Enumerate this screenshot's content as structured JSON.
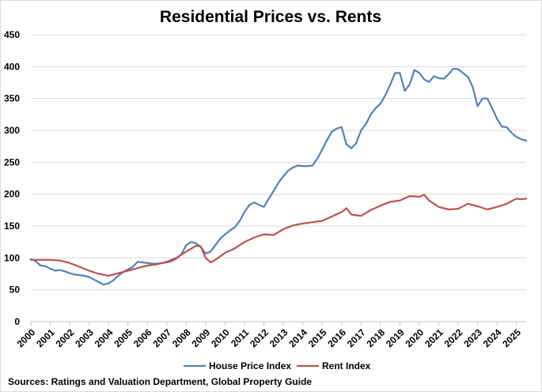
{
  "chart_data": {
    "type": "line",
    "title": "Residential Prices vs. Rents",
    "xlabel": "",
    "ylabel": "",
    "ylim": [
      0,
      450
    ],
    "yticks": [
      0,
      50,
      100,
      150,
      200,
      250,
      300,
      350,
      400,
      450
    ],
    "xlim": [
      2000,
      2025.5
    ],
    "xticks": [
      "2000",
      "2001",
      "2002",
      "2003",
      "2004",
      "2005",
      "2006",
      "2007",
      "2008",
      "2009",
      "2010",
      "2011",
      "2012",
      "2013",
      "2014",
      "2015",
      "2016",
      "2017",
      "2018",
      "2019",
      "2020",
      "2021",
      "2022",
      "2023",
      "2024",
      "2025"
    ],
    "grid": "horizontal",
    "legend_position": "bottom",
    "source": "Sources: Ratings and Valuation Department, Global Property Guide",
    "series": [
      {
        "name": "House Price Index",
        "color": "#4f81bd",
        "points": [
          [
            2000.0,
            98
          ],
          [
            2000.25,
            95
          ],
          [
            2000.5,
            88
          ],
          [
            2000.75,
            87
          ],
          [
            2001.0,
            83
          ],
          [
            2001.25,
            80
          ],
          [
            2001.5,
            81
          ],
          [
            2001.75,
            79
          ],
          [
            2002.0,
            76
          ],
          [
            2002.25,
            74
          ],
          [
            2002.5,
            73
          ],
          [
            2002.75,
            72
          ],
          [
            2003.0,
            70
          ],
          [
            2003.25,
            66
          ],
          [
            2003.5,
            62
          ],
          [
            2003.75,
            58
          ],
          [
            2004.0,
            60
          ],
          [
            2004.25,
            65
          ],
          [
            2004.5,
            72
          ],
          [
            2004.75,
            78
          ],
          [
            2005.0,
            82
          ],
          [
            2005.25,
            86
          ],
          [
            2005.5,
            94
          ],
          [
            2005.75,
            93
          ],
          [
            2006.0,
            92
          ],
          [
            2006.25,
            91
          ],
          [
            2006.5,
            91
          ],
          [
            2006.75,
            92
          ],
          [
            2007.0,
            93
          ],
          [
            2007.25,
            95
          ],
          [
            2007.5,
            99
          ],
          [
            2007.75,
            106
          ],
          [
            2008.0,
            120
          ],
          [
            2008.25,
            125
          ],
          [
            2008.5,
            123
          ],
          [
            2008.75,
            117
          ],
          [
            2009.0,
            107
          ],
          [
            2009.25,
            110
          ],
          [
            2009.5,
            120
          ],
          [
            2009.75,
            130
          ],
          [
            2010.0,
            137
          ],
          [
            2010.25,
            143
          ],
          [
            2010.5,
            148
          ],
          [
            2010.75,
            158
          ],
          [
            2011.0,
            172
          ],
          [
            2011.25,
            183
          ],
          [
            2011.5,
            187
          ],
          [
            2011.75,
            183
          ],
          [
            2012.0,
            180
          ],
          [
            2012.25,
            193
          ],
          [
            2012.5,
            205
          ],
          [
            2012.75,
            218
          ],
          [
            2013.0,
            228
          ],
          [
            2013.25,
            237
          ],
          [
            2013.5,
            242
          ],
          [
            2013.75,
            245
          ],
          [
            2014.0,
            244
          ],
          [
            2014.25,
            244
          ],
          [
            2014.5,
            245
          ],
          [
            2014.75,
            256
          ],
          [
            2015.0,
            270
          ],
          [
            2015.25,
            285
          ],
          [
            2015.5,
            298
          ],
          [
            2015.75,
            303
          ],
          [
            2016.0,
            305
          ],
          [
            2016.25,
            278
          ],
          [
            2016.5,
            272
          ],
          [
            2016.75,
            280
          ],
          [
            2017.0,
            300
          ],
          [
            2017.25,
            310
          ],
          [
            2017.5,
            325
          ],
          [
            2017.75,
            335
          ],
          [
            2018.0,
            342
          ],
          [
            2018.25,
            355
          ],
          [
            2018.5,
            372
          ],
          [
            2018.75,
            390
          ],
          [
            2019.0,
            390
          ],
          [
            2019.25,
            362
          ],
          [
            2019.5,
            372
          ],
          [
            2019.75,
            395
          ],
          [
            2020.0,
            390
          ],
          [
            2020.25,
            380
          ],
          [
            2020.5,
            376
          ],
          [
            2020.75,
            385
          ],
          [
            2021.0,
            382
          ],
          [
            2021.25,
            381
          ],
          [
            2021.5,
            388
          ],
          [
            2021.75,
            397
          ],
          [
            2022.0,
            396
          ],
          [
            2022.25,
            390
          ],
          [
            2022.5,
            384
          ],
          [
            2022.75,
            368
          ],
          [
            2023.0,
            338
          ],
          [
            2023.25,
            350
          ],
          [
            2023.5,
            350
          ],
          [
            2023.75,
            335
          ],
          [
            2024.0,
            318
          ],
          [
            2024.25,
            306
          ],
          [
            2024.5,
            305
          ],
          [
            2024.75,
            296
          ],
          [
            2025.0,
            290
          ],
          [
            2025.25,
            286
          ],
          [
            2025.5,
            284
          ]
        ]
      },
      {
        "name": "Rent Index",
        "color": "#c0504d",
        "points": [
          [
            2000.0,
            97
          ],
          [
            2000.5,
            97
          ],
          [
            2001.0,
            97
          ],
          [
            2001.5,
            96
          ],
          [
            2002.0,
            92
          ],
          [
            2002.5,
            86
          ],
          [
            2003.0,
            80
          ],
          [
            2003.5,
            75
          ],
          [
            2004.0,
            72
          ],
          [
            2004.5,
            76
          ],
          [
            2005.0,
            80
          ],
          [
            2005.5,
            84
          ],
          [
            2006.0,
            88
          ],
          [
            2006.5,
            90
          ],
          [
            2007.0,
            94
          ],
          [
            2007.5,
            100
          ],
          [
            2008.0,
            110
          ],
          [
            2008.5,
            119
          ],
          [
            2008.75,
            118
          ],
          [
            2009.0,
            100
          ],
          [
            2009.25,
            93
          ],
          [
            2009.5,
            97
          ],
          [
            2010.0,
            108
          ],
          [
            2010.5,
            115
          ],
          [
            2011.0,
            125
          ],
          [
            2011.5,
            132
          ],
          [
            2012.0,
            137
          ],
          [
            2012.5,
            136
          ],
          [
            2013.0,
            145
          ],
          [
            2013.5,
            151
          ],
          [
            2014.0,
            154
          ],
          [
            2014.5,
            156
          ],
          [
            2015.0,
            158
          ],
          [
            2015.5,
            165
          ],
          [
            2016.0,
            172
          ],
          [
            2016.25,
            178
          ],
          [
            2016.5,
            168
          ],
          [
            2017.0,
            166
          ],
          [
            2017.5,
            175
          ],
          [
            2018.0,
            182
          ],
          [
            2018.5,
            188
          ],
          [
            2019.0,
            190
          ],
          [
            2019.5,
            197
          ],
          [
            2020.0,
            196
          ],
          [
            2020.25,
            199
          ],
          [
            2020.5,
            190
          ],
          [
            2021.0,
            180
          ],
          [
            2021.5,
            176
          ],
          [
            2022.0,
            177
          ],
          [
            2022.5,
            185
          ],
          [
            2023.0,
            181
          ],
          [
            2023.5,
            176
          ],
          [
            2024.0,
            180
          ],
          [
            2024.5,
            185
          ],
          [
            2024.75,
            189
          ],
          [
            2025.0,
            193
          ],
          [
            2025.25,
            192
          ],
          [
            2025.5,
            193
          ]
        ]
      }
    ]
  }
}
